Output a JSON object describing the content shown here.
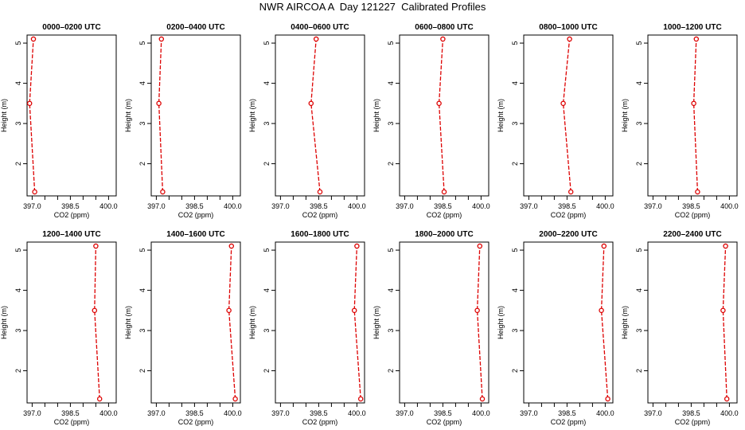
{
  "figure": {
    "title": "NWR AIRCOA A  Day 121227  Calibrated Profiles",
    "xlabel": "CO2 (ppm)",
    "ylabel": "Height (m)",
    "line_color": "#dd0000",
    "marker_color": "#dd0000"
  },
  "chart_data": [
    {
      "type": "line",
      "title": "0000–0200 UTC",
      "xlabel": "CO2 (ppm)",
      "ylabel": "Height (m)",
      "xlim": [
        396.8,
        400.3
      ],
      "ylim": [
        1.2,
        5.2
      ],
      "xticks": [
        "397.0",
        "398.5",
        "400.0"
      ],
      "yticks": [
        "2",
        "3",
        "4",
        "5"
      ],
      "x": [
        397.1,
        396.9,
        397.05
      ],
      "y": [
        1.3,
        3.5,
        5.1
      ]
    },
    {
      "type": "line",
      "title": "0200–0400 UTC",
      "xlabel": "CO2 (ppm)",
      "ylabel": "Height (m)",
      "xlim": [
        396.8,
        400.3
      ],
      "ylim": [
        1.2,
        5.2
      ],
      "xticks": [
        "397.0",
        "398.5",
        "400.0"
      ],
      "yticks": [
        "2",
        "3",
        "4",
        "5"
      ],
      "x": [
        397.25,
        397.1,
        397.2
      ],
      "y": [
        1.3,
        3.5,
        5.1
      ]
    },
    {
      "type": "line",
      "title": "0400–0600 UTC",
      "xlabel": "CO2 (ppm)",
      "ylabel": "Height (m)",
      "xlim": [
        396.8,
        400.3
      ],
      "ylim": [
        1.2,
        5.2
      ],
      "xticks": [
        "397.0",
        "398.5",
        "400.0"
      ],
      "yticks": [
        "2",
        "3",
        "4",
        "5"
      ],
      "x": [
        398.55,
        398.2,
        398.4
      ],
      "y": [
        1.3,
        3.5,
        5.1
      ]
    },
    {
      "type": "line",
      "title": "0600–0800 UTC",
      "xlabel": "CO2 (ppm)",
      "ylabel": "Height (m)",
      "xlim": [
        396.8,
        400.3
      ],
      "ylim": [
        1.2,
        5.2
      ],
      "xticks": [
        "397.0",
        "398.5",
        "400.0"
      ],
      "yticks": [
        "2",
        "3",
        "4",
        "5"
      ],
      "x": [
        398.55,
        398.35,
        398.5
      ],
      "y": [
        1.3,
        3.5,
        5.1
      ]
    },
    {
      "type": "line",
      "title": "0800–1000 UTC",
      "xlabel": "CO2 (ppm)",
      "ylabel": "Height (m)",
      "xlim": [
        396.8,
        400.3
      ],
      "ylim": [
        1.2,
        5.2
      ],
      "xticks": [
        "397.0",
        "398.5",
        "400.0"
      ],
      "yticks": [
        "2",
        "3",
        "4",
        "5"
      ],
      "x": [
        398.65,
        398.35,
        398.6
      ],
      "y": [
        1.3,
        3.5,
        5.1
      ]
    },
    {
      "type": "line",
      "title": "1000–1200 UTC",
      "xlabel": "CO2 (ppm)",
      "ylabel": "Height (m)",
      "xlim": [
        396.8,
        400.3
      ],
      "ylim": [
        1.2,
        5.2
      ],
      "xticks": [
        "397.0",
        "398.5",
        "400.0"
      ],
      "yticks": [
        "2",
        "3",
        "4",
        "5"
      ],
      "x": [
        398.75,
        398.6,
        398.7
      ],
      "y": [
        1.3,
        3.5,
        5.1
      ]
    },
    {
      "type": "line",
      "title": "1200–1400 UTC",
      "xlabel": "CO2 (ppm)",
      "ylabel": "Height (m)",
      "xlim": [
        396.8,
        400.3
      ],
      "ylim": [
        1.2,
        5.2
      ],
      "xticks": [
        "397.0",
        "398.5",
        "400.0"
      ],
      "yticks": [
        "2",
        "3",
        "4",
        "5"
      ],
      "x": [
        399.65,
        399.45,
        399.5
      ],
      "y": [
        1.3,
        3.5,
        5.1
      ]
    },
    {
      "type": "line",
      "title": "1400–1600 UTC",
      "xlabel": "CO2 (ppm)",
      "ylabel": "Height (m)",
      "xlim": [
        396.8,
        400.3
      ],
      "ylim": [
        1.2,
        5.2
      ],
      "xticks": [
        "397.0",
        "398.5",
        "400.0"
      ],
      "yticks": [
        "2",
        "3",
        "4",
        "5"
      ],
      "x": [
        400.1,
        399.85,
        399.95
      ],
      "y": [
        1.3,
        3.5,
        5.1
      ]
    },
    {
      "type": "line",
      "title": "1600–1800 UTC",
      "xlabel": "CO2 (ppm)",
      "ylabel": "Height (m)",
      "xlim": [
        396.8,
        400.3
      ],
      "ylim": [
        1.2,
        5.2
      ],
      "xticks": [
        "397.0",
        "398.5",
        "400.0"
      ],
      "yticks": [
        "2",
        "3",
        "4",
        "5"
      ],
      "x": [
        400.15,
        399.9,
        400.0
      ],
      "y": [
        1.3,
        3.5,
        5.1
      ]
    },
    {
      "type": "line",
      "title": "1800–2000 UTC",
      "xlabel": "CO2 (ppm)",
      "ylabel": "Height (m)",
      "xlim": [
        396.8,
        400.3
      ],
      "ylim": [
        1.2,
        5.2
      ],
      "xticks": [
        "397.0",
        "398.5",
        "400.0"
      ],
      "yticks": [
        "2",
        "3",
        "4",
        "5"
      ],
      "x": [
        400.05,
        399.85,
        399.95
      ],
      "y": [
        1.3,
        3.5,
        5.1
      ]
    },
    {
      "type": "line",
      "title": "2000–2200 UTC",
      "xlabel": "CO2 (ppm)",
      "ylabel": "Height (m)",
      "xlim": [
        396.8,
        400.3
      ],
      "ylim": [
        1.2,
        5.2
      ],
      "xticks": [
        "397.0",
        "398.5",
        "400.0"
      ],
      "yticks": [
        "2",
        "3",
        "4",
        "5"
      ],
      "x": [
        400.1,
        399.85,
        399.95
      ],
      "y": [
        1.3,
        3.5,
        5.1
      ]
    },
    {
      "type": "line",
      "title": "2200–2400 UTC",
      "xlabel": "CO2 (ppm)",
      "ylabel": "Height (m)",
      "xlim": [
        396.8,
        400.3
      ],
      "ylim": [
        1.2,
        5.2
      ],
      "xticks": [
        "397.0",
        "398.5",
        "400.0"
      ],
      "yticks": [
        "2",
        "3",
        "4",
        "5"
      ],
      "x": [
        399.9,
        399.75,
        399.85
      ],
      "y": [
        1.3,
        3.5,
        5.1
      ]
    }
  ]
}
